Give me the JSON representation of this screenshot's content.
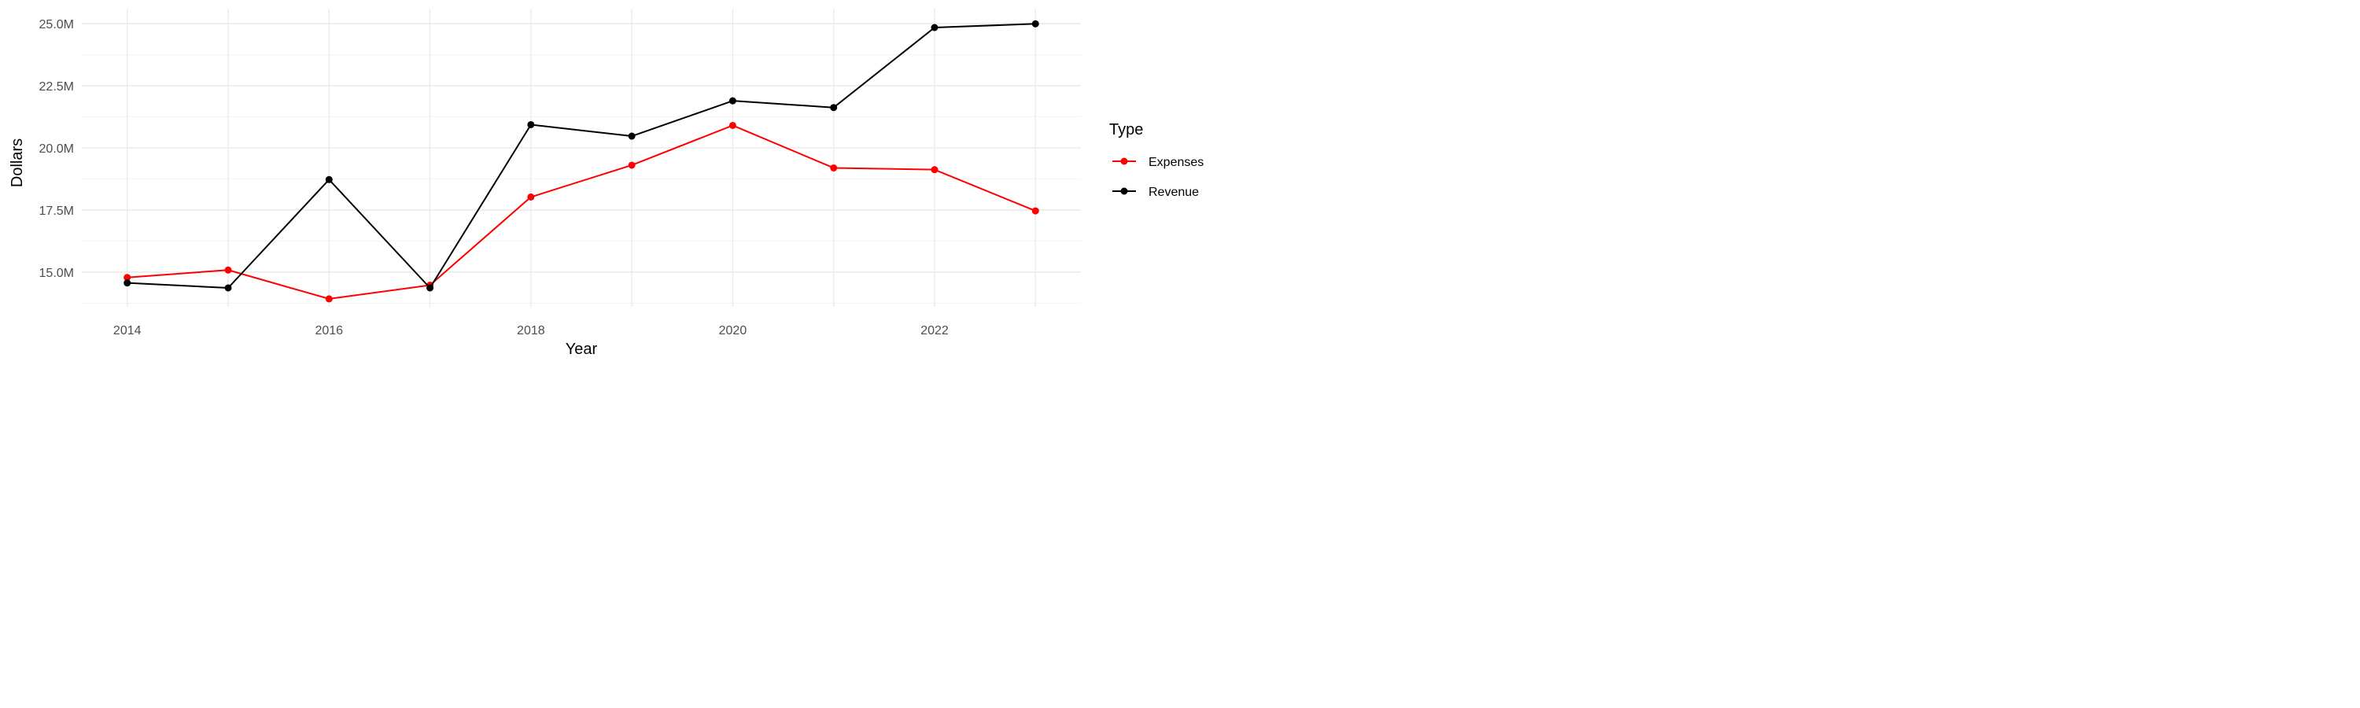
{
  "chart_data": {
    "type": "line",
    "title": "",
    "xlabel": "Year",
    "ylabel": "Dollars",
    "x": [
      2014,
      2015,
      2016,
      2017,
      2018,
      2019,
      2020,
      2021,
      2022,
      2023
    ],
    "x_ticks": [
      "2014",
      "2016",
      "2018",
      "2020",
      "2022"
    ],
    "y_ticks": [
      "15.0M",
      "17.5M",
      "20.0M",
      "22.5M",
      "25.0M"
    ],
    "xlim": [
      2013.55,
      2023.45
    ],
    "ylim": [
      13.6,
      25.6
    ],
    "units": "M",
    "grid": true,
    "legend_position": "right",
    "legend_title": "Type",
    "series": [
      {
        "name": "Expenses",
        "color": "#ff0000",
        "values": [
          14.78,
          15.08,
          13.92,
          14.47,
          18.02,
          19.3,
          20.9,
          19.19,
          19.12,
          17.46
        ]
      },
      {
        "name": "Revenue",
        "color": "#000000",
        "values": [
          14.56,
          14.36,
          18.72,
          14.36,
          20.93,
          20.47,
          21.89,
          21.62,
          24.84,
          24.99
        ]
      }
    ]
  }
}
